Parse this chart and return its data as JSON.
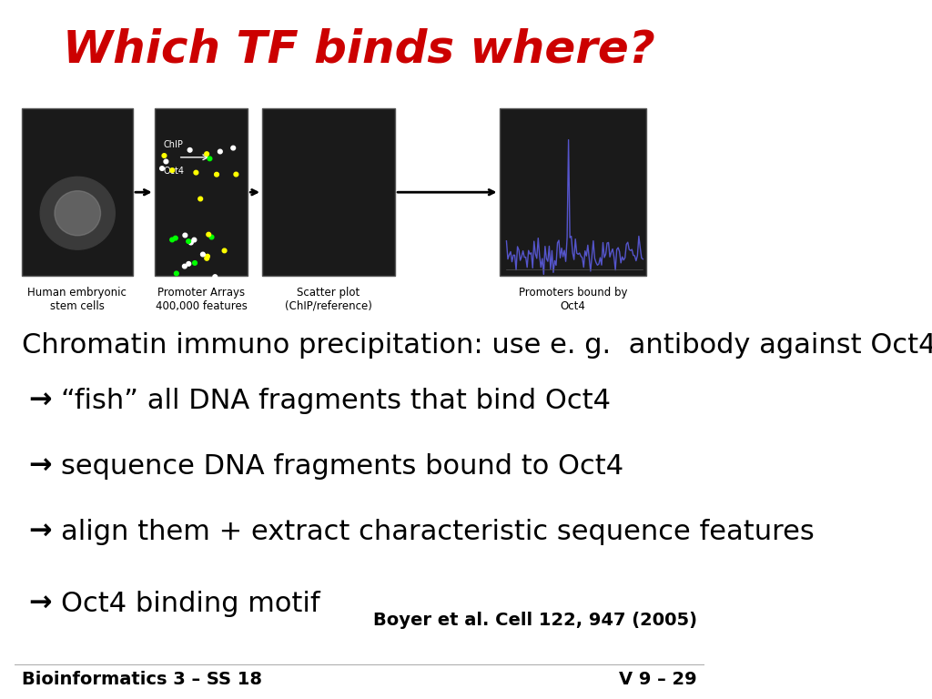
{
  "title": "Which TF binds where?",
  "title_color": "#CC0000",
  "title_fontsize": 36,
  "title_fontstyle": "italic",
  "subtitle": "Chromatin immuno precipitation: use e. g.  antibody against Oct4",
  "subtitle_fontsize": 22,
  "bullet_arrow": "→",
  "bullets": [
    "“fish” all DNA fragments that bind Oct4",
    "sequence DNA fragments bound to Oct4",
    "align them + extract characteristic sequence features",
    "Oct4 binding motif"
  ],
  "bullet_fontsize": 22,
  "bullet_indent": 0.04,
  "citation": "Boyer et al. Cell 122, 947 (2005)",
  "citation_fontsize": 14,
  "footer_left": "Bioinformatics 3 – SS 18",
  "footer_right": "V 9 – 29",
  "footer_fontsize": 14,
  "background_color": "#ffffff",
  "text_color": "#000000"
}
